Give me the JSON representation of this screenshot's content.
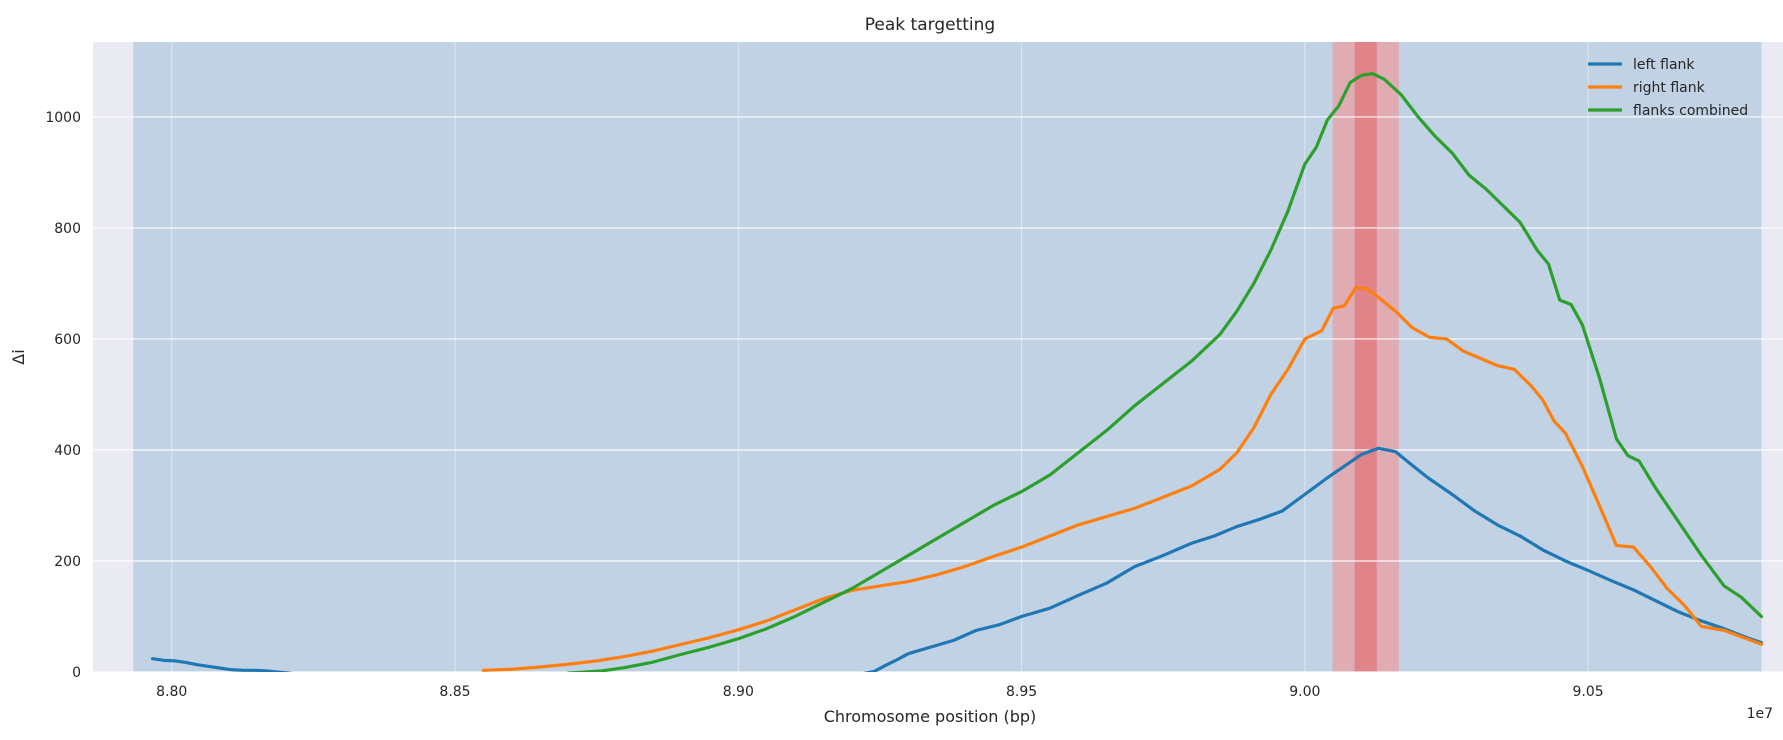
{
  "chart_data": {
    "type": "line",
    "title": "Peak targetting",
    "xlabel": "Chromosome position (bp)",
    "ylabel": "Δi",
    "x_offset_label": "1e7",
    "xlim": [
      8.7861,
      9.0844
    ],
    "ylim": [
      0,
      1135
    ],
    "xticks": [
      8.8,
      8.85,
      8.9,
      8.95,
      9.0,
      9.05
    ],
    "xtick_labels": [
      "8.80",
      "8.85",
      "8.90",
      "8.95",
      "9.00",
      "9.05"
    ],
    "yticks": [
      0,
      200,
      400,
      600,
      800,
      1000
    ],
    "ytick_labels": [
      "0",
      "200",
      "400",
      "600",
      "800",
      "1000"
    ],
    "grid": true,
    "legend_position": "top-right",
    "shaded_regions": [
      {
        "x0": 8.7932,
        "x1": 9.0806,
        "color": "#c1d2e4",
        "opacity": 1
      },
      {
        "x0": 9.0049,
        "x1": 9.0166,
        "color": "#e6a3a8",
        "opacity": 0.8
      },
      {
        "x0": 9.0088,
        "x1": 9.0127,
        "color": "#e07a80",
        "opacity": 0.8
      }
    ],
    "series": [
      {
        "name": "left flank",
        "color": "#1f77b4",
        "points": [
          [
            8.7966,
            24
          ],
          [
            8.7986,
            21
          ],
          [
            8.8006,
            20
          ],
          [
            8.8026,
            17
          ],
          [
            8.8046,
            13
          ],
          [
            8.8066,
            10
          ],
          [
            8.8086,
            7
          ],
          [
            8.8106,
            4
          ],
          [
            8.8126,
            3
          ],
          [
            8.8146,
            3
          ],
          [
            8.8166,
            2
          ],
          [
            8.8186,
            0
          ],
          [
            8.8206,
            -2
          ],
          [
            8.8226,
            -4
          ],
          [
            8.8246,
            -6
          ],
          [
            8.83,
            -10
          ],
          [
            8.85,
            -30
          ],
          [
            8.88,
            -50
          ],
          [
            8.9,
            -40
          ],
          [
            8.915,
            -20
          ],
          [
            8.922,
            -3
          ],
          [
            8.924,
            1
          ],
          [
            8.926,
            12
          ],
          [
            8.928,
            22
          ],
          [
            8.93,
            33
          ],
          [
            8.934,
            45
          ],
          [
            8.938,
            57
          ],
          [
            8.942,
            75
          ],
          [
            8.946,
            85
          ],
          [
            8.95,
            100
          ],
          [
            8.955,
            115
          ],
          [
            8.96,
            138
          ],
          [
            8.965,
            160
          ],
          [
            8.97,
            190
          ],
          [
            8.975,
            210
          ],
          [
            8.98,
            232
          ],
          [
            8.984,
            245
          ],
          [
            8.988,
            262
          ],
          [
            8.992,
            275
          ],
          [
            8.996,
            290
          ],
          [
            9.0,
            320
          ],
          [
            9.004,
            350
          ],
          [
            9.008,
            378
          ],
          [
            9.01,
            392
          ],
          [
            9.013,
            403
          ],
          [
            9.016,
            397
          ],
          [
            9.019,
            372
          ],
          [
            9.022,
            348
          ],
          [
            9.026,
            320
          ],
          [
            9.03,
            290
          ],
          [
            9.034,
            265
          ],
          [
            9.038,
            245
          ],
          [
            9.042,
            220
          ],
          [
            9.046,
            200
          ],
          [
            9.05,
            183
          ],
          [
            9.054,
            165
          ],
          [
            9.058,
            148
          ],
          [
            9.062,
            128
          ],
          [
            9.066,
            108
          ],
          [
            9.07,
            92
          ],
          [
            9.074,
            78
          ],
          [
            9.078,
            62
          ],
          [
            9.0806,
            53
          ]
        ]
      },
      {
        "name": "right flank",
        "color": "#ff7f0e",
        "points": [
          [
            8.855,
            3
          ],
          [
            8.86,
            5
          ],
          [
            8.865,
            9
          ],
          [
            8.87,
            14
          ],
          [
            8.875,
            20
          ],
          [
            8.88,
            28
          ],
          [
            8.885,
            38
          ],
          [
            8.89,
            50
          ],
          [
            8.895,
            62
          ],
          [
            8.9,
            76
          ],
          [
            8.905,
            92
          ],
          [
            8.91,
            112
          ],
          [
            8.915,
            132
          ],
          [
            8.92,
            147
          ],
          [
            8.925,
            155
          ],
          [
            8.93,
            163
          ],
          [
            8.935,
            175
          ],
          [
            8.94,
            190
          ],
          [
            8.945,
            208
          ],
          [
            8.95,
            225
          ],
          [
            8.955,
            245
          ],
          [
            8.96,
            265
          ],
          [
            8.965,
            280
          ],
          [
            8.97,
            295
          ],
          [
            8.975,
            315
          ],
          [
            8.98,
            335
          ],
          [
            8.985,
            365
          ],
          [
            8.988,
            395
          ],
          [
            8.991,
            440
          ],
          [
            8.994,
            500
          ],
          [
            8.997,
            545
          ],
          [
            9.0,
            600
          ],
          [
            9.003,
            615
          ],
          [
            9.005,
            655
          ],
          [
            9.007,
            660
          ],
          [
            9.009,
            693
          ],
          [
            9.011,
            690
          ],
          [
            9.013,
            675
          ],
          [
            9.016,
            650
          ],
          [
            9.019,
            620
          ],
          [
            9.022,
            603
          ],
          [
            9.025,
            600
          ],
          [
            9.028,
            578
          ],
          [
            9.031,
            565
          ],
          [
            9.034,
            552
          ],
          [
            9.037,
            545
          ],
          [
            9.04,
            515
          ],
          [
            9.042,
            490
          ],
          [
            9.044,
            452
          ],
          [
            9.046,
            430
          ],
          [
            9.049,
            370
          ],
          [
            9.052,
            300
          ],
          [
            9.055,
            228
          ],
          [
            9.058,
            225
          ],
          [
            9.061,
            190
          ],
          [
            9.064,
            150
          ],
          [
            9.067,
            120
          ],
          [
            9.07,
            82
          ],
          [
            9.074,
            75
          ],
          [
            9.078,
            60
          ],
          [
            9.0806,
            50
          ]
        ]
      },
      {
        "name": "flanks combined",
        "color": "#2ca02c",
        "points": [
          [
            8.87,
            -2
          ],
          [
            8.876,
            2
          ],
          [
            8.88,
            8
          ],
          [
            8.885,
            18
          ],
          [
            8.89,
            32
          ],
          [
            8.895,
            45
          ],
          [
            8.9,
            60
          ],
          [
            8.905,
            78
          ],
          [
            8.91,
            100
          ],
          [
            8.915,
            125
          ],
          [
            8.92,
            150
          ],
          [
            8.925,
            180
          ],
          [
            8.93,
            210
          ],
          [
            8.935,
            240
          ],
          [
            8.94,
            270
          ],
          [
            8.945,
            300
          ],
          [
            8.95,
            325
          ],
          [
            8.955,
            355
          ],
          [
            8.96,
            395
          ],
          [
            8.965,
            435
          ],
          [
            8.97,
            480
          ],
          [
            8.975,
            520
          ],
          [
            8.98,
            560
          ],
          [
            8.985,
            608
          ],
          [
            8.988,
            650
          ],
          [
            8.991,
            700
          ],
          [
            8.994,
            760
          ],
          [
            8.997,
            830
          ],
          [
            9.0,
            915
          ],
          [
            9.002,
            945
          ],
          [
            9.004,
            995
          ],
          [
            9.006,
            1020
          ],
          [
            9.008,
            1062
          ],
          [
            9.01,
            1075
          ],
          [
            9.012,
            1078
          ],
          [
            9.014,
            1068
          ],
          [
            9.017,
            1040
          ],
          [
            9.02,
            1000
          ],
          [
            9.023,
            965
          ],
          [
            9.026,
            935
          ],
          [
            9.029,
            895
          ],
          [
            9.032,
            870
          ],
          [
            9.035,
            840
          ],
          [
            9.038,
            810
          ],
          [
            9.041,
            760
          ],
          [
            9.043,
            735
          ],
          [
            9.045,
            670
          ],
          [
            9.047,
            662
          ],
          [
            9.049,
            625
          ],
          [
            9.052,
            530
          ],
          [
            9.055,
            420
          ],
          [
            9.057,
            390
          ],
          [
            9.059,
            380
          ],
          [
            9.062,
            330
          ],
          [
            9.066,
            270
          ],
          [
            9.07,
            210
          ],
          [
            9.074,
            155
          ],
          [
            9.077,
            135
          ],
          [
            9.0806,
            100
          ]
        ]
      }
    ]
  }
}
